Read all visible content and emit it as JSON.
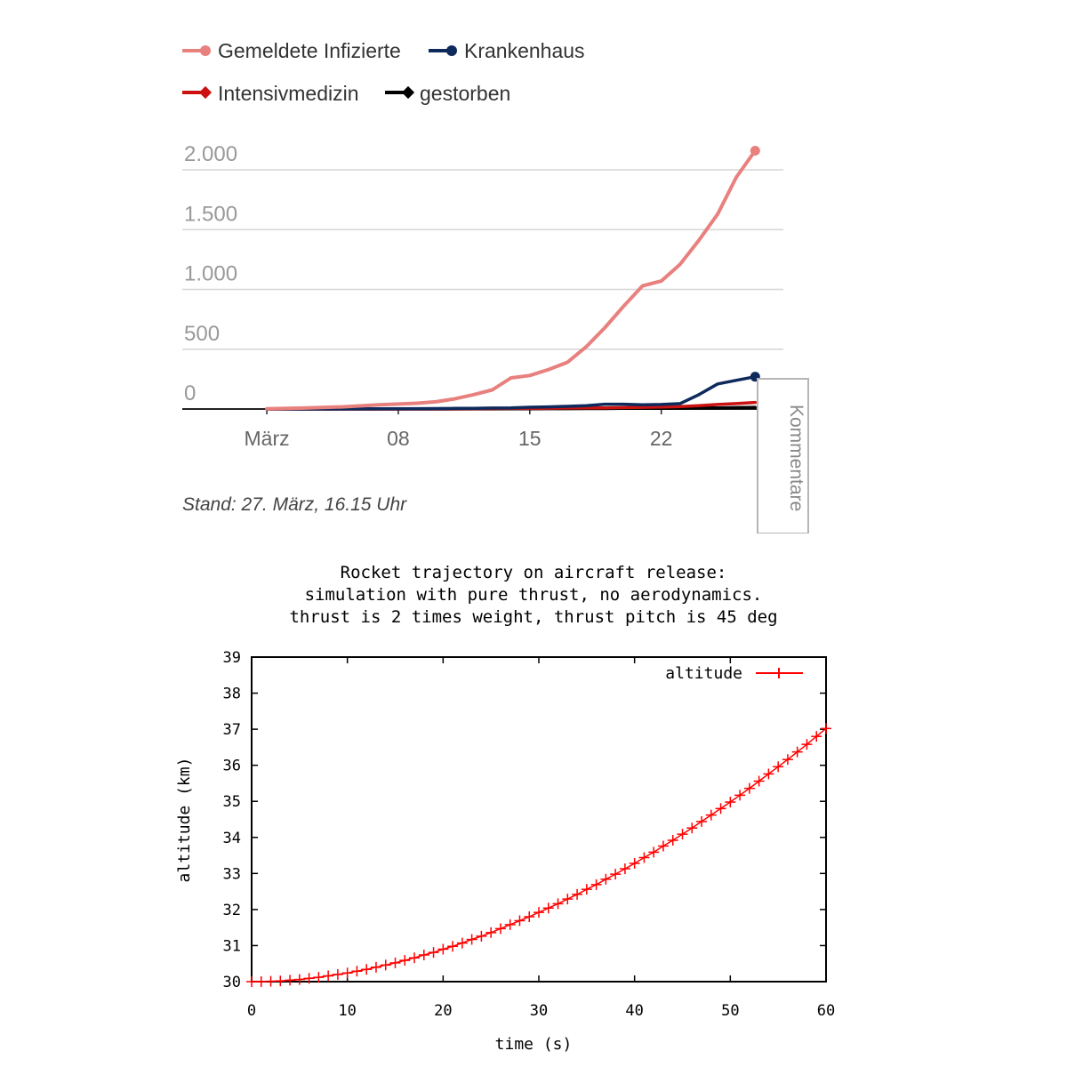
{
  "chart_data": [
    {
      "type": "line",
      "title": "",
      "footnote": "Stand: 27. März, 16.15 Uhr",
      "legend": [
        {
          "name": "Gemeldete Infizierte",
          "color": "#e8807e",
          "marker": "circle"
        },
        {
          "name": "Krankenhaus",
          "color": "#0e2a5c",
          "marker": "circle"
        },
        {
          "name": "Intensivmedizin",
          "color": "#cc1111",
          "marker": "diamond"
        },
        {
          "name": "gestorben",
          "color": "#000000",
          "marker": "diamond"
        }
      ],
      "x": [
        1,
        3,
        5,
        7,
        9,
        10,
        11,
        12,
        13,
        14,
        15,
        16,
        17,
        18,
        19,
        20,
        21,
        22,
        23,
        24,
        25,
        26,
        27
      ],
      "x_ticks": [
        {
          "value": 1,
          "label": "März"
        },
        {
          "value": 8,
          "label": "08"
        },
        {
          "value": 15,
          "label": "15"
        },
        {
          "value": 22,
          "label": "22"
        }
      ],
      "xlim": [
        -3.5,
        28.5
      ],
      "y_ticks": [
        {
          "value": 0,
          "label": "0"
        },
        {
          "value": 500,
          "label": "500"
        },
        {
          "value": 1000,
          "label": "1.000"
        },
        {
          "value": 1500,
          "label": "1.500"
        },
        {
          "value": 2000,
          "label": "2.000"
        }
      ],
      "ylim": [
        0,
        2150
      ],
      "series": [
        {
          "name": "Gemeldete Infizierte",
          "values": [
            2,
            8,
            18,
            35,
            48,
            60,
            85,
            120,
            160,
            260,
            280,
            330,
            390,
            520,
            680,
            860,
            1030,
            1070,
            1210,
            1410,
            1630,
            1940,
            2160
          ]
        },
        {
          "name": "Krankenhaus",
          "values": [
            0,
            0,
            1,
            2,
            3,
            4,
            5,
            6,
            8,
            10,
            15,
            18,
            22,
            28,
            40,
            40,
            35,
            38,
            45,
            120,
            210,
            240,
            270
          ]
        },
        {
          "name": "Intensivmedizin",
          "values": [
            0,
            0,
            0,
            0,
            1,
            1,
            2,
            3,
            4,
            5,
            6,
            7,
            8,
            9,
            10,
            12,
            14,
            16,
            20,
            28,
            38,
            45,
            55
          ]
        },
        {
          "name": "gestorben",
          "values": [
            0,
            0,
            0,
            0,
            0,
            0,
            0,
            1,
            1,
            2,
            2,
            3,
            3,
            4,
            4,
            5,
            5,
            6,
            7,
            9,
            10,
            12,
            14
          ]
        }
      ],
      "comment_tab_label": "Kommentare"
    },
    {
      "type": "line",
      "title_lines": [
        "Rocket trajectory on aircraft release:",
        "simulation with pure thrust, no aerodynamics.",
        "thrust is 2 times weight, thrust pitch is 45 deg"
      ],
      "xlabel": "time (s)",
      "ylabel": "altitude (km)",
      "xlim": [
        0,
        60
      ],
      "ylim": [
        30,
        39
      ],
      "x_ticks": [
        0,
        10,
        20,
        30,
        40,
        50,
        60
      ],
      "y_ticks": [
        30,
        31,
        32,
        33,
        34,
        35,
        36,
        37,
        38,
        39
      ],
      "series": [
        {
          "name": "altitude",
          "color": "#ff0000",
          "marker": "plus",
          "x": [
            0,
            1,
            2,
            3,
            4,
            5,
            6,
            7,
            8,
            9,
            10,
            11,
            12,
            13,
            14,
            15,
            16,
            17,
            18,
            19,
            20,
            21,
            22,
            23,
            24,
            25,
            26,
            27,
            28,
            29,
            30,
            31,
            32,
            33,
            34,
            35,
            36,
            37,
            38,
            39,
            40,
            41,
            42,
            43,
            44,
            45,
            46,
            47,
            48,
            49,
            50,
            51,
            52,
            53,
            54,
            55,
            56,
            57,
            58,
            59,
            60
          ],
          "values": [
            30.0,
            30.0,
            30.01,
            30.02,
            30.04,
            30.06,
            30.09,
            30.12,
            30.16,
            30.2,
            30.24,
            30.29,
            30.34,
            30.4,
            30.46,
            30.52,
            30.59,
            30.66,
            30.74,
            30.81,
            30.9,
            30.98,
            31.07,
            31.17,
            31.26,
            31.36,
            31.47,
            31.58,
            31.69,
            31.8,
            31.92,
            32.04,
            32.16,
            32.29,
            32.42,
            32.56,
            32.69,
            32.84,
            32.98,
            33.13,
            33.28,
            33.44,
            33.59,
            33.76,
            33.92,
            34.09,
            34.26,
            34.44,
            34.62,
            34.8,
            34.98,
            35.17,
            35.36,
            35.56,
            35.76,
            35.96,
            36.16,
            36.37,
            36.58,
            36.8,
            37.02
          ]
        }
      ]
    }
  ]
}
